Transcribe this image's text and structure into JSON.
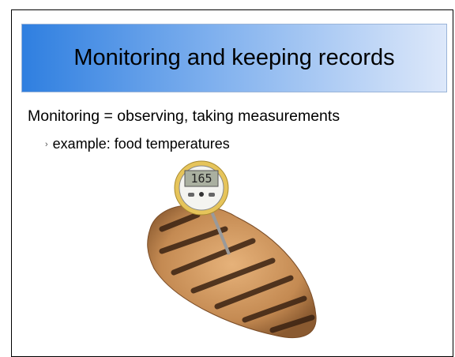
{
  "slide": {
    "title": "Monitoring and keeping records",
    "body": "Monitoring = observing, taking measurements",
    "bullets": [
      "example: food temperatures"
    ],
    "thermometer_display": "165"
  }
}
